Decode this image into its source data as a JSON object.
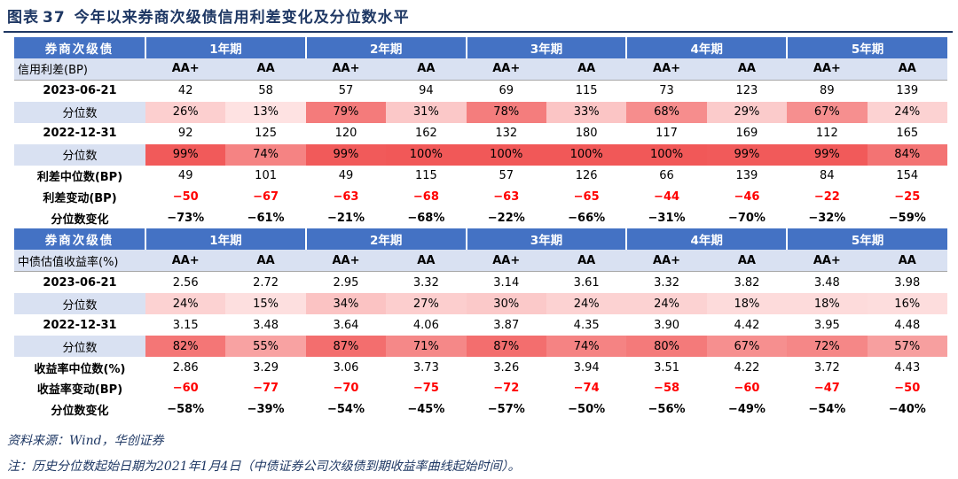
{
  "title": {
    "prefix": "图表",
    "number": "37",
    "text": "今年以来券商次级债信用利差变化及分位数水平"
  },
  "colors": {
    "header_blue": "#4472c4",
    "light_blue": "#d9e1f2",
    "accent_red": "#ff0000",
    "title_navy": "#1f3864"
  },
  "table1": {
    "header_label": "券商次级债",
    "terms": [
      "1年期",
      "2年期",
      "3年期",
      "4年期",
      "5年期"
    ],
    "sub_label": "信用利差(BP)",
    "ratings": [
      "AA+",
      "AA",
      "AA+",
      "AA",
      "AA+",
      "AA",
      "AA+",
      "AA",
      "AA+",
      "AA"
    ],
    "rows": [
      {
        "label": "2023-06-21",
        "type": "value",
        "values": [
          "42",
          "58",
          "57",
          "94",
          "69",
          "115",
          "73",
          "123",
          "89",
          "139"
        ]
      },
      {
        "label": "分位数",
        "type": "pct",
        "values": [
          "26%",
          "13%",
          "79%",
          "31%",
          "78%",
          "33%",
          "68%",
          "29%",
          "67%",
          "24%"
        ],
        "levels": [
          26,
          13,
          79,
          31,
          78,
          33,
          68,
          29,
          67,
          24
        ]
      },
      {
        "label": "2022-12-31",
        "type": "value",
        "values": [
          "92",
          "125",
          "120",
          "162",
          "132",
          "180",
          "117",
          "169",
          "112",
          "165"
        ]
      },
      {
        "label": "分位数",
        "type": "pct",
        "values": [
          "99%",
          "74%",
          "99%",
          "100%",
          "100%",
          "100%",
          "100%",
          "99%",
          "99%",
          "84%"
        ],
        "levels": [
          99,
          74,
          99,
          100,
          100,
          100,
          100,
          99,
          99,
          84
        ]
      },
      {
        "label": "利差中位数(BP)",
        "type": "value",
        "values": [
          "49",
          "101",
          "49",
          "115",
          "57",
          "126",
          "66",
          "139",
          "84",
          "154"
        ]
      },
      {
        "label": "利差变动(BP)",
        "type": "change",
        "values": [
          "-50",
          "-67",
          "-63",
          "-68",
          "-63",
          "-65",
          "-44",
          "-46",
          "-22",
          "-25"
        ]
      },
      {
        "label": "分位数变化",
        "type": "pctchange",
        "values": [
          "-73%",
          "-61%",
          "-21%",
          "-68%",
          "-22%",
          "-66%",
          "-31%",
          "-70%",
          "-32%",
          "-59%"
        ]
      }
    ]
  },
  "table2": {
    "header_label": "券商次级债",
    "terms": [
      "1年期",
      "2年期",
      "3年期",
      "4年期",
      "5年期"
    ],
    "sub_label": "中债估值收益率(%)",
    "ratings": [
      "AA+",
      "AA",
      "AA+",
      "AA",
      "AA+",
      "AA",
      "AA+",
      "AA",
      "AA+",
      "AA"
    ],
    "rows": [
      {
        "label": "2023-06-21",
        "type": "value",
        "values": [
          "2.56",
          "2.72",
          "2.95",
          "3.32",
          "3.14",
          "3.61",
          "3.32",
          "3.82",
          "3.48",
          "3.98"
        ]
      },
      {
        "label": "分位数",
        "type": "pct",
        "values": [
          "24%",
          "15%",
          "34%",
          "27%",
          "30%",
          "24%",
          "24%",
          "18%",
          "18%",
          "16%"
        ],
        "levels": [
          24,
          15,
          34,
          27,
          30,
          24,
          24,
          18,
          18,
          16
        ]
      },
      {
        "label": "2022-12-31",
        "type": "value",
        "values": [
          "3.15",
          "3.48",
          "3.64",
          "4.06",
          "3.87",
          "4.35",
          "3.90",
          "4.42",
          "3.95",
          "4.48"
        ]
      },
      {
        "label": "分位数",
        "type": "pct",
        "values": [
          "82%",
          "55%",
          "87%",
          "71%",
          "87%",
          "74%",
          "80%",
          "67%",
          "72%",
          "57%"
        ],
        "levels": [
          82,
          55,
          87,
          71,
          87,
          74,
          80,
          67,
          72,
          57
        ]
      },
      {
        "label": "收益率中位数(%)",
        "type": "value",
        "values": [
          "2.86",
          "3.29",
          "3.06",
          "3.73",
          "3.26",
          "3.94",
          "3.51",
          "4.22",
          "3.72",
          "4.43"
        ]
      },
      {
        "label": "收益率变动(BP)",
        "type": "change",
        "values": [
          "-60",
          "-77",
          "-70",
          "-75",
          "-72",
          "-74",
          "-58",
          "-60",
          "-47",
          "-50"
        ]
      },
      {
        "label": "分位数变化",
        "type": "pctchange",
        "values": [
          "-58%",
          "-39%",
          "-54%",
          "-45%",
          "-57%",
          "-50%",
          "-56%",
          "-49%",
          "-54%",
          "-40%"
        ]
      }
    ]
  },
  "source": "资料来源：Wind，华创证券",
  "note": "注：历史分位数起始日期为2021年1月4日（中债证券公司次级债到期收益率曲线起始时间）。"
}
